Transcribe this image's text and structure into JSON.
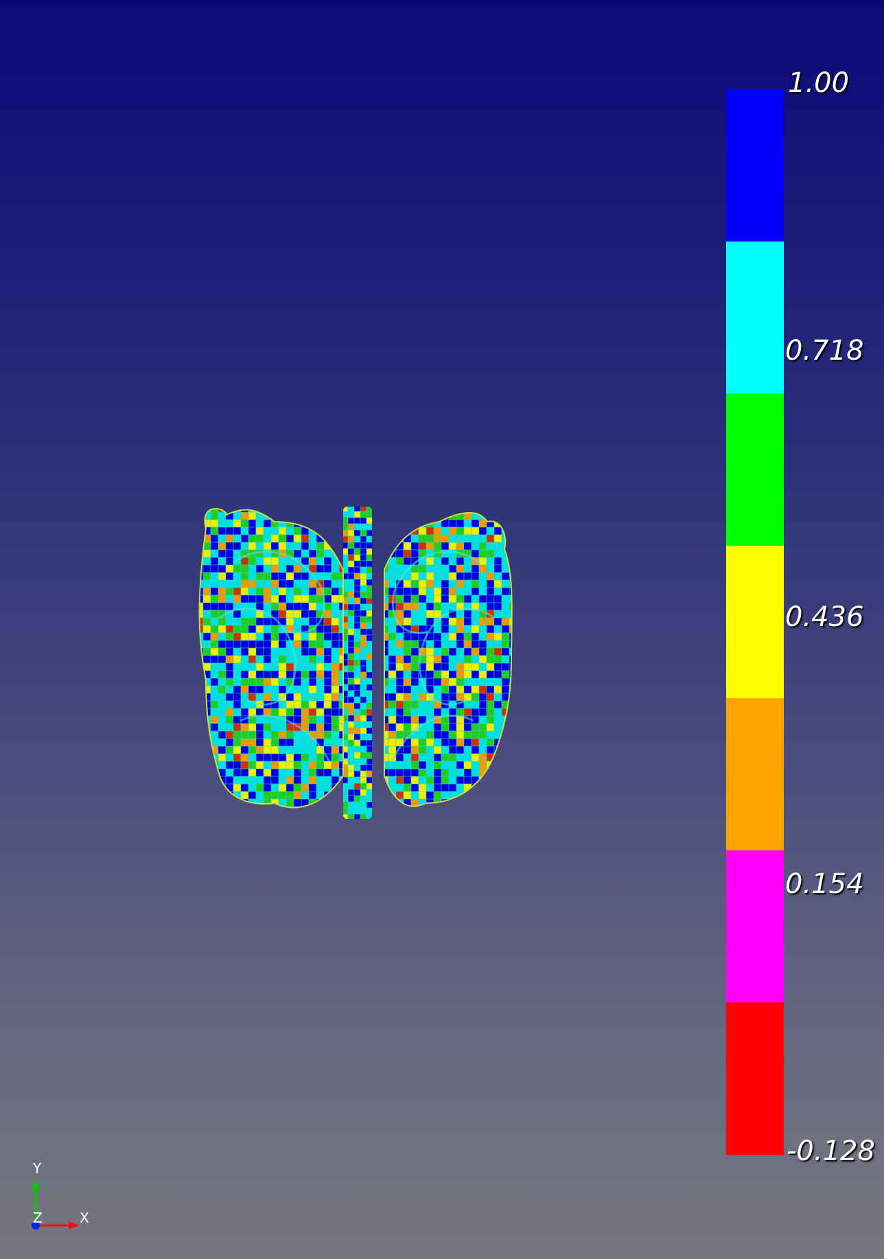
{
  "colorbar": {
    "labels": [
      "1.00",
      "0.718",
      "0.436",
      "0.154",
      "-0.128"
    ],
    "bands": [
      "#0000ff",
      "#00ffff",
      "#00ff00",
      "#ffff00",
      "#ffa500",
      "#ff00ff",
      "#ff0000"
    ]
  },
  "axes": {
    "x": "X",
    "y": "Y",
    "z": "Z"
  },
  "colors": {
    "background_top": "#0b0878",
    "background_bottom": "#75767e",
    "mesh_palette": [
      "#0000dd",
      "#00e0e0",
      "#22cc22",
      "#eeee00",
      "#ee9900",
      "#cc3300"
    ]
  },
  "icons": [
    "axes-triad-icon"
  ]
}
